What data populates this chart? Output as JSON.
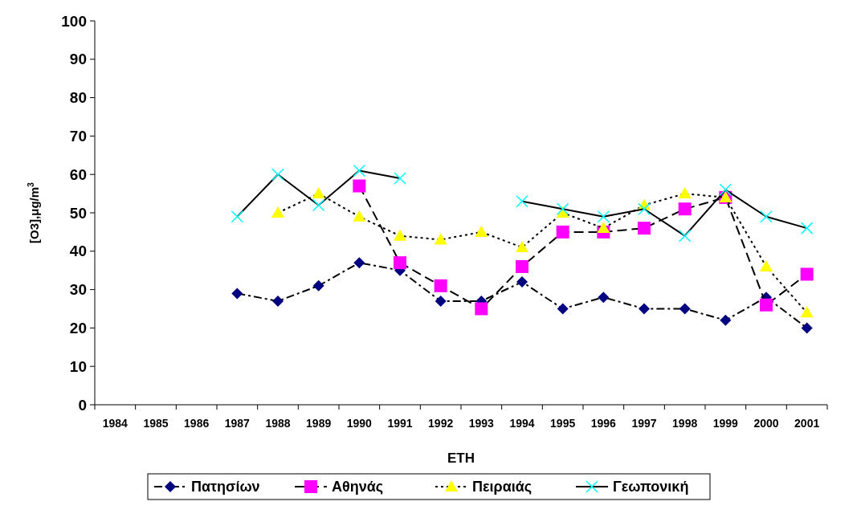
{
  "chart_data": {
    "type": "line",
    "xlabel": "ΕΤΗ",
    "ylabel": "[O3],μg/m$^{3}$",
    "categories": [
      "1984",
      "1985",
      "1986",
      "1987",
      "1988",
      "1989",
      "1990",
      "1991",
      "1992",
      "1993",
      "1994",
      "1995",
      "1996",
      "1997",
      "1998",
      "1999",
      "2000",
      "2001"
    ],
    "ylim": [
      0,
      100
    ],
    "yticks": [
      0,
      10,
      20,
      30,
      40,
      50,
      60,
      70,
      80,
      90,
      100
    ],
    "grid": false,
    "legend": "bottom",
    "series": [
      {
        "name": "Πατησίων",
        "color": "#000080",
        "marker": "diamond",
        "line_style": "dashdot",
        "values": [
          null,
          null,
          null,
          29,
          27,
          31,
          37,
          35,
          27,
          27,
          32,
          25,
          28,
          25,
          25,
          22,
          28,
          20
        ]
      },
      {
        "name": "Αθηνάς",
        "color": "#ff00ff",
        "marker": "square",
        "line_style": "dashed",
        "values": [
          null,
          null,
          null,
          null,
          null,
          null,
          57,
          37,
          31,
          25,
          36,
          45,
          45,
          46,
          51,
          54,
          26,
          34
        ]
      },
      {
        "name": "Πειραιάς",
        "color": "#ffff00",
        "marker": "triangle",
        "line_style": "dotted",
        "values": [
          null,
          null,
          null,
          null,
          50,
          55,
          49,
          44,
          43,
          45,
          41,
          50,
          46,
          52,
          55,
          54,
          36,
          24
        ]
      },
      {
        "name": "Γεωπονική",
        "color": "#00ffff",
        "marker": "cross",
        "line_style": "solid",
        "values": [
          null,
          null,
          null,
          49,
          60,
          52,
          61,
          59,
          null,
          null,
          53,
          51,
          49,
          51,
          44,
          56,
          49,
          46
        ]
      }
    ]
  }
}
